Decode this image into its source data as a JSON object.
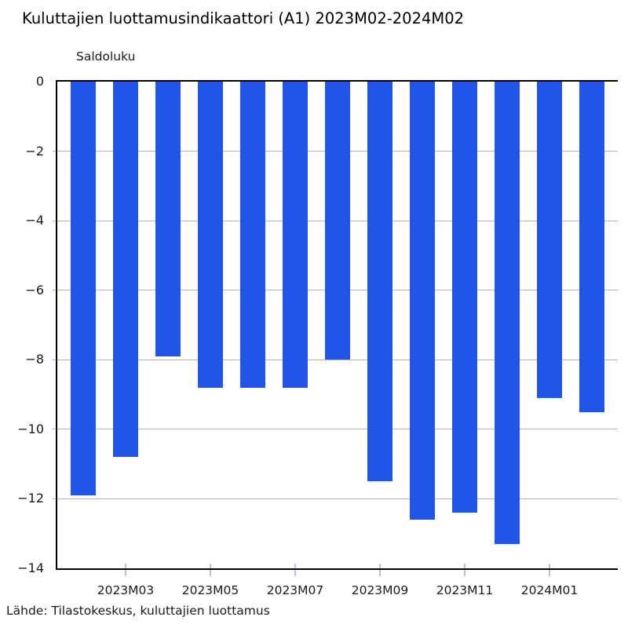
{
  "chart_data": {
    "type": "bar",
    "title": "Kuluttajien luottamusindikaattori (A1) 2023M02-2024M02",
    "ylabel": "Saldoluku",
    "source": "Lähde: Tilastokeskus, kuluttajien luottamus",
    "categories": [
      "2023M02",
      "2023M03",
      "2023M04",
      "2023M05",
      "2023M06",
      "2023M07",
      "2023M08",
      "2023M09",
      "2023M10",
      "2023M11",
      "2023M12",
      "2024M01",
      "2024M02"
    ],
    "values": [
      -11.9,
      -10.8,
      -7.9,
      -8.8,
      -8.8,
      -8.8,
      -8.0,
      -11.5,
      -12.6,
      -12.4,
      -13.3,
      -9.1,
      -9.5
    ],
    "x_tick_labels": [
      "2023M03",
      "2023M05",
      "2023M07",
      "2023M09",
      "2023M11",
      "2024M01"
    ],
    "x_tick_category_indexes": [
      1,
      3,
      5,
      7,
      9,
      11
    ],
    "y_ticks": [
      0,
      -2,
      -4,
      -6,
      -8,
      -10,
      -12,
      -14
    ],
    "y_tick_labels": [
      "0",
      "−2",
      "−4",
      "−6",
      "−8",
      "−10",
      "−12",
      "−14"
    ],
    "ylim": [
      -14,
      0
    ],
    "grid": true,
    "legend": "none",
    "colors": {
      "bar": "#2155e8",
      "grid": "#b3b3b3",
      "axis": "#000000",
      "x_tick_mark": "#b8c3d9",
      "text": "#1a1a1a"
    }
  }
}
